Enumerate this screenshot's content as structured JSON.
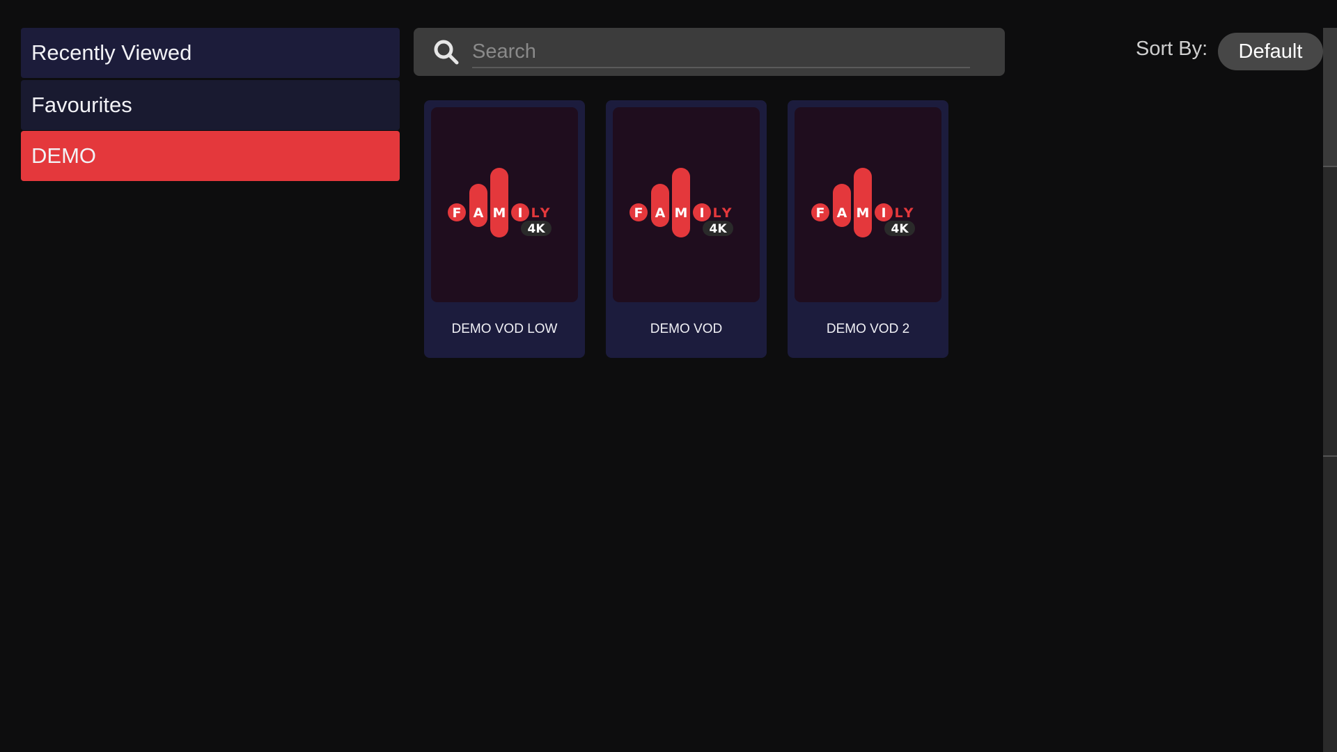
{
  "sidebar": {
    "items": [
      {
        "label": "Recently Viewed",
        "selected": false
      },
      {
        "label": "Favourites",
        "selected": false
      },
      {
        "label": "DEMO",
        "selected": true
      }
    ]
  },
  "search": {
    "placeholder": "Search",
    "value": "",
    "icon": "search-icon"
  },
  "sort": {
    "label": "Sort By:",
    "value": "Default"
  },
  "cards": [
    {
      "title": "DEMO VOD LOW",
      "logo": "FAMILY 4K"
    },
    {
      "title": "DEMO VOD",
      "logo": "FAMILY 4K"
    },
    {
      "title": "DEMO VOD 2",
      "logo": "FAMILY 4K"
    }
  ],
  "colors": {
    "accent": "#e4383c",
    "sidebar": "#1c1c3a",
    "card": "#1c1c3d",
    "background": "#0d0d0e"
  }
}
